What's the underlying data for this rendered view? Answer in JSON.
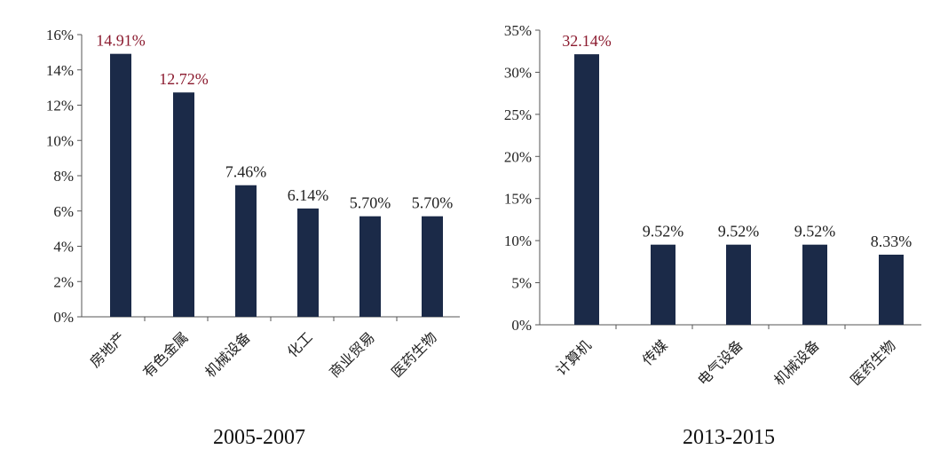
{
  "colors": {
    "bar": "#1b2a48",
    "label": "#222222",
    "highlight": "#8b1a2e"
  },
  "chart_data": [
    {
      "type": "bar",
      "title": "2005-2007",
      "categories": [
        "房地产",
        "有色金属",
        "机械设备",
        "化工",
        "商业贸易",
        "医药生物"
      ],
      "values": [
        14.91,
        12.72,
        7.46,
        6.14,
        5.7,
        5.7
      ],
      "value_labels": [
        "14.91%",
        "12.72%",
        "7.46%",
        "6.14%",
        "5.70%",
        "5.70%"
      ],
      "highlight": [
        true,
        true,
        false,
        false,
        false,
        false
      ],
      "ylim": [
        0,
        16
      ],
      "yticks": [
        0,
        2,
        4,
        6,
        8,
        10,
        12,
        14,
        16
      ],
      "ytick_labels": [
        "0%",
        "2%",
        "4%",
        "6%",
        "8%",
        "10%",
        "12%",
        "14%",
        "16%"
      ],
      "grid": false,
      "xlabel": "",
      "ylabel": ""
    },
    {
      "type": "bar",
      "title": "2013-2015",
      "categories": [
        "计算机",
        "传媒",
        "电气设备",
        "机械设备",
        "医药生物"
      ],
      "values": [
        32.14,
        9.52,
        9.52,
        9.52,
        8.33
      ],
      "value_labels": [
        "32.14%",
        "9.52%",
        "9.52%",
        "9.52%",
        "8.33%"
      ],
      "highlight": [
        true,
        false,
        false,
        false,
        false
      ],
      "ylim": [
        0,
        35
      ],
      "yticks": [
        0,
        5,
        10,
        15,
        20,
        25,
        30,
        35
      ],
      "ytick_labels": [
        "0%",
        "5%",
        "10%",
        "15%",
        "20%",
        "25%",
        "30%",
        "35%"
      ],
      "grid": false,
      "xlabel": "",
      "ylabel": ""
    }
  ]
}
